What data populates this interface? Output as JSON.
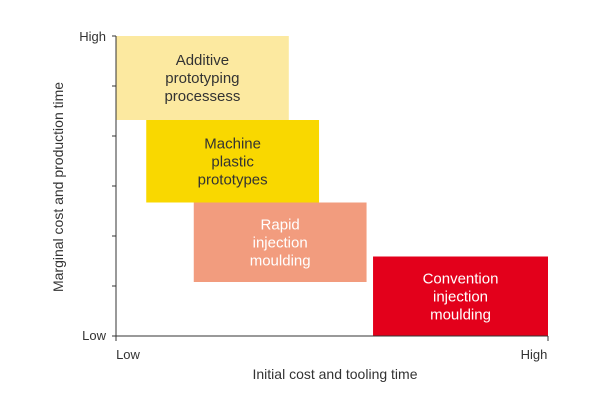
{
  "chart_data": {
    "type": "block-diagram",
    "title": "",
    "xlabel": "Initial cost and tooling time",
    "ylabel": "Marginal cost and production time",
    "x_ticks": {
      "low": "Low",
      "high": "High"
    },
    "y_ticks": {
      "low": "Low",
      "high": "High"
    },
    "xlim": [
      0,
      1
    ],
    "ylim": [
      0,
      1
    ],
    "axis_color": "#333333",
    "blocks": [
      {
        "label_lines": [
          "Additive",
          "prototyping",
          "processess"
        ],
        "x_range": [
          0.0,
          0.4
        ],
        "y_range": [
          0.72,
          1.0
        ],
        "fill": "#FCE9A0",
        "text_color": "#333333"
      },
      {
        "label_lines": [
          "Machine",
          "plastic",
          "prototypes"
        ],
        "x_range": [
          0.07,
          0.47
        ],
        "y_range": [
          0.445,
          0.72
        ],
        "fill": "#F9D800",
        "text_color": "#333333"
      },
      {
        "label_lines": [
          "Rapid",
          "injection",
          "moulding"
        ],
        "x_range": [
          0.18,
          0.58
        ],
        "y_range": [
          0.18,
          0.445
        ],
        "fill": "#F29C7E",
        "text_color": "#ffffff"
      },
      {
        "label_lines": [
          "Convention",
          "injection",
          "moulding"
        ],
        "x_range": [
          0.595,
          1.0
        ],
        "y_range": [
          0.0,
          0.265
        ],
        "fill": "#E3001B",
        "text_color": "#ffffff"
      }
    ]
  }
}
